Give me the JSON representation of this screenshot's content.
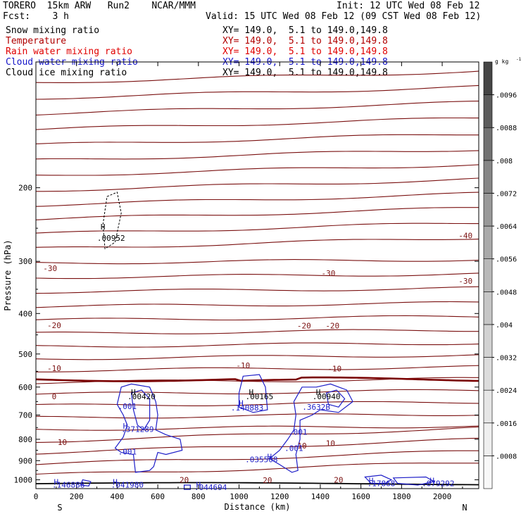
{
  "header": {
    "model_line": "TORERO  15km ARW   Run2    NCAR/MMM",
    "init_line": "Init: 12 UTC Wed 08 Feb 12",
    "fcst_line": "Fcst:    3 h",
    "valid_line": "Valid: 15 UTC Wed 08 Feb 12 (09 CST Wed 08 Feb 12)"
  },
  "fields": [
    {
      "label": "Snow mixing ratio",
      "xy": "XY= 149.0,  5.1 to 149.0,149.8",
      "label_color": "#000000",
      "xy_color": "#000000"
    },
    {
      "label": "Temperature",
      "xy": "XY= 149.0,  5.1 to 149.0,149.8",
      "label_color": "#b00000",
      "xy_color": "#b00000"
    },
    {
      "label": "Rain water mixing ratio",
      "xy": "XY= 149.0,  5.1 to 149.0,149.8",
      "label_color": "#e00000",
      "xy_color": "#e00000"
    },
    {
      "label": "Cloud water mixing ratio",
      "xy": "XY= 149.0,  5.1 to 149.0,149.8",
      "label_color": "#1414c8",
      "xy_color": "#1414c8"
    },
    {
      "label": "Cloud ice mixing ratio",
      "xy": "XY= 149.0,  5.1 to 149.0,149.8",
      "label_color": "#000000",
      "xy_color": "#000000"
    }
  ],
  "chart_data": {
    "type": "contour cross-section",
    "xlabel": "Distance (km)",
    "ylabel": "Pressure (hPa)",
    "xlim": [
      0,
      2180
    ],
    "ylim": [
      1050,
      100
    ],
    "x_ticks": [
      "0",
      "200",
      "400",
      "600",
      "800",
      "1000",
      "1200",
      "1400",
      "1600",
      "1800",
      "2000"
    ],
    "y_ticks": [
      "200",
      "300",
      "400",
      "500",
      "600",
      "700",
      "800",
      "900",
      "1000"
    ],
    "endpoint_labels": {
      "left": "S",
      "right": "N"
    },
    "colorbar": {
      "unit": "g kg",
      "unit_exponent": "-1",
      "tick_labels": [
        ".0096",
        ".0088",
        ".008",
        ".0072",
        ".0064",
        ".0056",
        ".0048",
        ".004",
        ".0032",
        ".0024",
        ".0016",
        ".0008"
      ],
      "shades": [
        "#f8f8f8",
        "#efefef",
        "#e6e6e6",
        "#dcdcdc",
        "#d2d2d2",
        "#c6c6c6",
        "#b9b9b9",
        "#aaaaaa",
        "#999999",
        "#868686",
        "#727272",
        "#5c5c5c",
        "#454545"
      ]
    },
    "colors": {
      "temperature": "#7a1010",
      "freezing_line": "#7a0000",
      "cloud_water": "#1e1ec8",
      "snow": "#000000"
    },
    "temperature_contour_labels": [
      {
        "text": "-40",
        "x": 2115,
        "p": 260
      },
      {
        "text": "-30",
        "x": 70,
        "p": 312
      },
      {
        "text": "-30",
        "x": 1440,
        "p": 320
      },
      {
        "text": "-30",
        "x": 2115,
        "p": 334
      },
      {
        "text": "-20",
        "x": 90,
        "p": 427
      },
      {
        "text": "-20",
        "x": 1320,
        "p": 428
      },
      {
        "text": "-20",
        "x": 1460,
        "p": 428
      },
      {
        "text": "-10",
        "x": 90,
        "p": 541
      },
      {
        "text": "-10",
        "x": 1020,
        "p": 532
      },
      {
        "text": "-10",
        "x": 1470,
        "p": 542
      },
      {
        "text": "0",
        "x": 90,
        "p": 632
      },
      {
        "text": "10",
        "x": 130,
        "p": 813
      },
      {
        "text": "10",
        "x": 1310,
        "p": 828
      },
      {
        "text": "10",
        "x": 1450,
        "p": 818
      },
      {
        "text": "20",
        "x": 730,
        "p": 1000
      },
      {
        "text": "20",
        "x": 1140,
        "p": 1002
      },
      {
        "text": "20",
        "x": 1490,
        "p": 1000
      }
    ],
    "extrema_labels": [
      {
        "text": "H",
        "x": 330,
        "p": 248,
        "color": "#000000"
      },
      {
        "text": ".00952",
        "x": 370,
        "p": 264,
        "color": "#000000"
      },
      {
        "text": "H",
        "x": 480,
        "p": 617,
        "color": "#000000"
      },
      {
        "text": ".00420",
        "x": 520,
        "p": 632,
        "color": "#000000"
      },
      {
        "text": "H",
        "x": 1060,
        "p": 617,
        "color": "#000000"
      },
      {
        "text": ".00165",
        "x": 1100,
        "p": 632,
        "color": "#000000"
      },
      {
        "text": "H",
        "x": 1390,
        "p": 617,
        "color": "#000000"
      },
      {
        "text": ".00940",
        "x": 1430,
        "p": 632,
        "color": "#000000"
      },
      {
        "text": ".001",
        "x": 450,
        "p": 667,
        "color": "#1e1ec8"
      },
      {
        "text": "H",
        "x": 1010,
        "p": 655,
        "color": "#1e1ec8"
      },
      {
        "text": ".140883",
        "x": 1040,
        "p": 672,
        "color": "#1e1ec8"
      },
      {
        "text": ".3632B",
        "x": 1380,
        "p": 670,
        "color": "#1e1ec8"
      },
      {
        "text": "H",
        "x": 440,
        "p": 743,
        "color": "#1e1ec8"
      },
      {
        "text": ".371289",
        "x": 500,
        "p": 757,
        "color": "#1e1ec8"
      },
      {
        "text": ".001",
        "x": 1290,
        "p": 768,
        "color": "#1e1ec8"
      },
      {
        "text": ".001",
        "x": 450,
        "p": 856,
        "color": "#1e1ec8"
      },
      {
        "text": ".001",
        "x": 1270,
        "p": 840,
        "color": "#1e1ec8"
      },
      {
        "text": "H",
        "x": 1150,
        "p": 880,
        "color": "#1e1ec8"
      },
      {
        "text": ".035508",
        "x": 1110,
        "p": 893,
        "color": "#1e1ec8"
      },
      {
        "text": "H",
        "x": 100,
        "p": 1012,
        "color": "#1e1ec8"
      },
      {
        "text": ".146888",
        "x": 160,
        "p": 1027,
        "color": "#1e1ec8"
      },
      {
        "text": "H",
        "x": 390,
        "p": 1012,
        "color": "#1e1ec8"
      },
      {
        "text": ".041980",
        "x": 450,
        "p": 1027,
        "color": "#1e1ec8"
      },
      {
        "text": "H",
        "x": 800,
        "p": 1027,
        "color": "#1e1ec8"
      },
      {
        "text": ".044694",
        "x": 860,
        "p": 1042,
        "color": "#1e1ec8"
      },
      {
        "text": "H",
        "x": 1650,
        "p": 1005,
        "color": "#1e1ec8"
      },
      {
        "text": ".17868",
        "x": 1700,
        "p": 1020,
        "color": "#1e1ec8"
      },
      {
        "text": "H",
        "x": 1950,
        "p": 1005,
        "color": "#1e1ec8"
      },
      {
        "text": ".079292",
        "x": 1980,
        "p": 1020,
        "color": "#1e1ec8"
      }
    ]
  }
}
